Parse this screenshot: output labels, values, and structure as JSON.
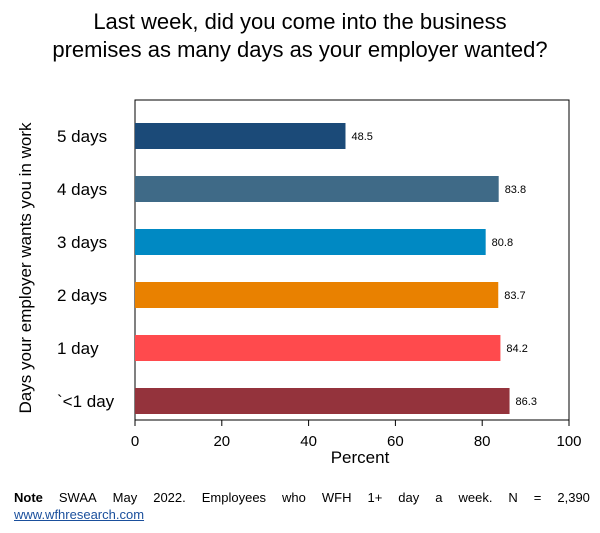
{
  "chart_data": {
    "type": "bar",
    "orientation": "horizontal",
    "title_lines": [
      "Last week, did you come into the business",
      "premises as many days as your employer wanted?"
    ],
    "xlabel": "Percent",
    "ylabel": "Days your employer wants you in work",
    "xlim": [
      0,
      100
    ],
    "xticks": [
      "0",
      "20",
      "40",
      "60",
      "80",
      "100"
    ],
    "categories": [
      "5 days",
      "4 days",
      "3 days",
      "2 days",
      "1 day",
      "`<1 day"
    ],
    "values": [
      48.5,
      83.8,
      80.8,
      83.7,
      84.2,
      86.3
    ],
    "value_labels": [
      "48.5",
      "83.8",
      "80.8",
      "83.7",
      "84.2",
      "86.3"
    ],
    "colors": [
      "#1b4a78",
      "#3f6a87",
      "#0089c3",
      "#e98100",
      "#ff4a4d",
      "#94333c"
    ],
    "grid": false
  },
  "note": {
    "label": "Note",
    "words": [
      "SWAA",
      "May",
      "2022.",
      "Employees",
      "who",
      "WFH",
      "1+",
      "day",
      "a",
      "week.",
      "N",
      "=",
      "2,390"
    ],
    "link": "www.wfhresearch.com"
  }
}
